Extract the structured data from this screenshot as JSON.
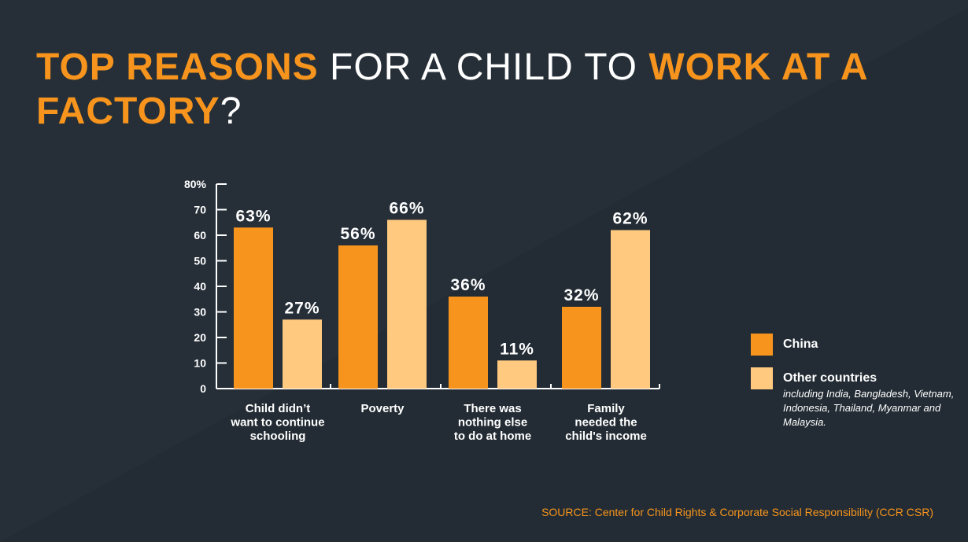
{
  "title": {
    "parts": [
      {
        "text": "TOP REASONS",
        "highlight": true
      },
      {
        "text": " FOR A CHILD TO ",
        "highlight": false
      },
      {
        "text": "WORK AT A FACTORY",
        "highlight": true
      },
      {
        "text": "?",
        "highlight": false
      }
    ]
  },
  "colors": {
    "background": "#262f38",
    "accent": "#f7941d",
    "china": "#f7941d",
    "other": "#ffc97f",
    "text": "#ffffff"
  },
  "chart_data": {
    "type": "bar",
    "categories": [
      [
        "Child didn’t",
        "want to continue",
        "schooling"
      ],
      [
        "Poverty"
      ],
      [
        "There was",
        "nothing else",
        "to do at home"
      ],
      [
        "Family",
        "needed the",
        "child's income"
      ]
    ],
    "series": [
      {
        "name": "China",
        "values": [
          63,
          56,
          36,
          32
        ],
        "labels": [
          "63%",
          "56%",
          "36%",
          "32%"
        ]
      },
      {
        "name": "Other countries",
        "values": [
          27,
          66,
          11,
          62
        ],
        "labels": [
          "27%",
          "66%",
          "11%",
          "62%"
        ]
      }
    ],
    "ylim": [
      0,
      80
    ],
    "yticks": [
      0,
      10,
      20,
      30,
      40,
      50,
      60,
      70,
      80
    ],
    "ytick_labels": [
      "0",
      "10",
      "20",
      "30",
      "40",
      "50",
      "60",
      "70",
      "80%"
    ],
    "grid": false,
    "legend_position": "right"
  },
  "legend": {
    "china_label": "China",
    "other_label": "Other countries",
    "other_note": "including India, Bangladesh, Vietnam, Indonesia, Thailand, Myanmar and Malaysia."
  },
  "source": "SOURCE: Center for Child Rights & Corporate Social Responsibility (CCR CSR)"
}
